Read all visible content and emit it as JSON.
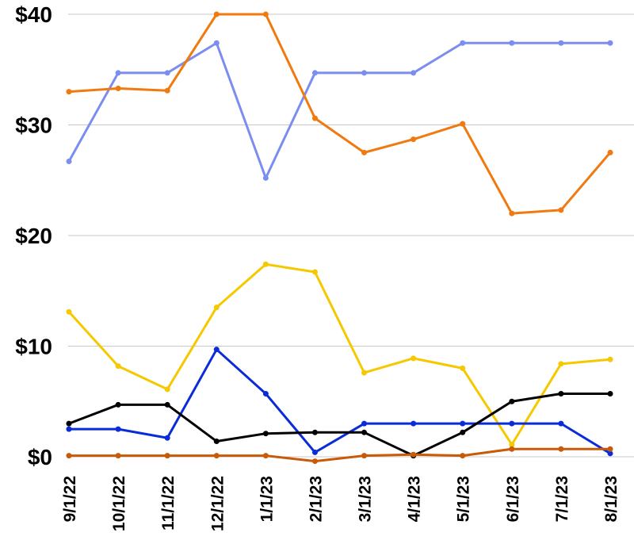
{
  "chart_data": {
    "type": "line",
    "title": "",
    "xlabel": "",
    "ylabel": "",
    "categories": [
      "9/1/22",
      "10/1/22",
      "11/1/22",
      "12/1/22",
      "1/1/23",
      "2/1/23",
      "3/1/23",
      "4/1/23",
      "5/1/23",
      "6/1/23",
      "7/1/23",
      "8/1/23"
    ],
    "y_ticks": [
      "$0",
      "$10",
      "$20",
      "$30",
      "$40"
    ],
    "ylim": [
      0,
      40
    ],
    "grid": true,
    "legend": "none",
    "series": [
      {
        "color": "#7B8EF0",
        "values": [
          26.7,
          34.7,
          34.7,
          37.4,
          25.2,
          34.7,
          34.7,
          34.7,
          37.4,
          37.4,
          37.4,
          37.4
        ]
      },
      {
        "color": "#F07A10",
        "values": [
          33.0,
          33.3,
          33.1,
          40.0,
          40.0,
          30.6,
          27.5,
          28.7,
          30.1,
          22.0,
          22.3,
          27.5
        ]
      },
      {
        "color": "#F5C800",
        "values": [
          13.1,
          8.2,
          6.1,
          13.5,
          17.4,
          16.7,
          7.6,
          8.9,
          8.0,
          1.1,
          8.4,
          8.8
        ]
      },
      {
        "color": "#0A2CD8",
        "values": [
          2.5,
          2.5,
          1.7,
          9.7,
          5.7,
          0.4,
          3.0,
          3.0,
          3.0,
          3.0,
          3.0,
          0.3
        ]
      },
      {
        "color": "#000000",
        "values": [
          3.0,
          4.7,
          4.7,
          1.4,
          2.1,
          2.2,
          2.2,
          0.1,
          2.2,
          5.0,
          5.7,
          5.7
        ]
      },
      {
        "color": "#C85A08",
        "values": [
          0.1,
          0.1,
          0.1,
          0.1,
          0.1,
          -0.4,
          0.1,
          0.2,
          0.1,
          0.7,
          0.7,
          0.7
        ]
      }
    ]
  }
}
